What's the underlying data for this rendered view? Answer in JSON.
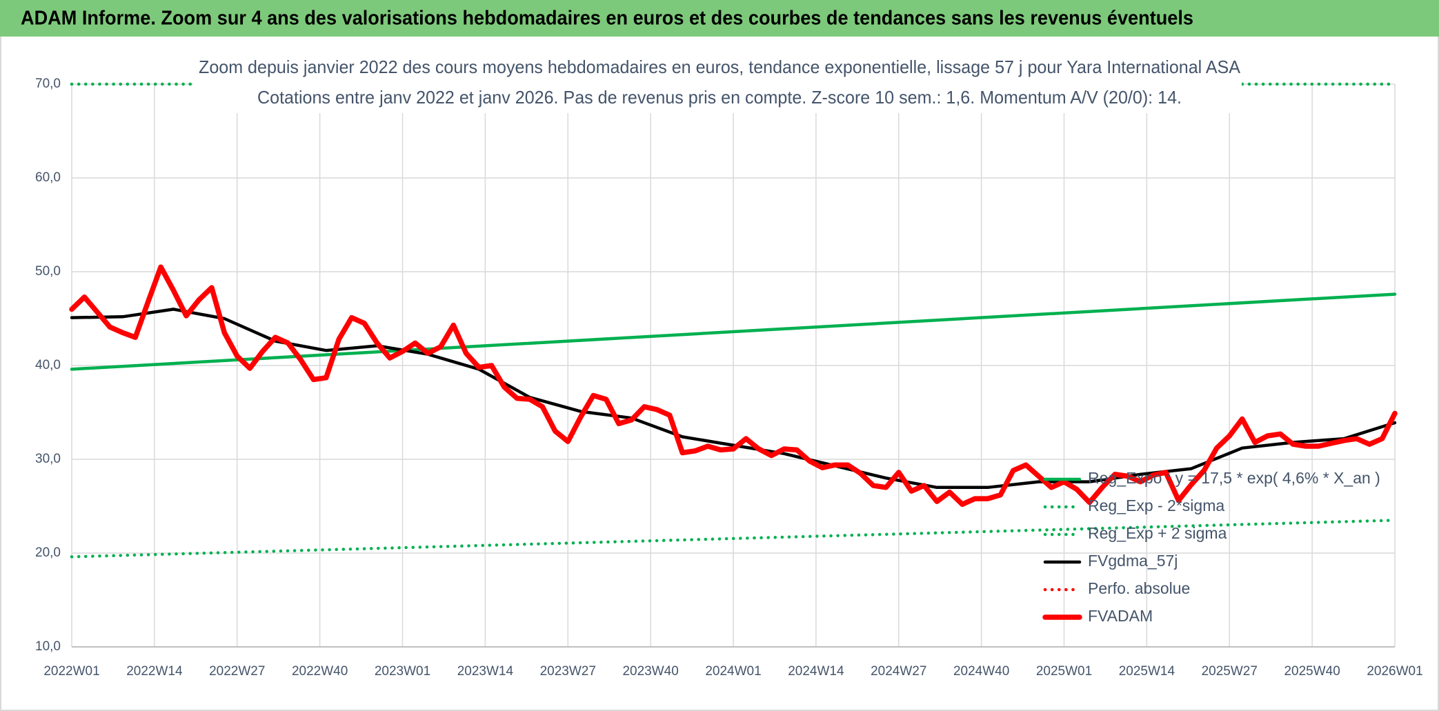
{
  "header": {
    "title": "ADAM Informe. Zoom sur 4 ans des valorisations hebdomadaires en euros et des courbes de tendances sans les revenus éventuels"
  },
  "chart_data": {
    "type": "line",
    "title": "Zoom depuis janvier 2022 des cours moyens hebdomadaires en euros, tendance exponentielle, lissage 57 j pour Yara International ASA",
    "subtitle": "Cotations entre janv 2022 et janv 2026. Pas de revenus pris en compte. Z-score 10 sem.: 1,6. Momentum A/V (20/0): 14.",
    "xlim": [
      0,
      208
    ],
    "xticks": [
      {
        "value": 0,
        "label": "2022W01"
      },
      {
        "value": 13,
        "label": "2022W14"
      },
      {
        "value": 26,
        "label": "2022W27"
      },
      {
        "value": 39,
        "label": "2022W40"
      },
      {
        "value": 52,
        "label": "2023W01"
      },
      {
        "value": 65,
        "label": "2023W14"
      },
      {
        "value": 78,
        "label": "2023W27"
      },
      {
        "value": 91,
        "label": "2023W40"
      },
      {
        "value": 104,
        "label": "2024W01"
      },
      {
        "value": 117,
        "label": "2024W14"
      },
      {
        "value": 130,
        "label": "2024W27"
      },
      {
        "value": 143,
        "label": "2024W40"
      },
      {
        "value": 156,
        "label": "2025W01"
      },
      {
        "value": 169,
        "label": "2025W14"
      },
      {
        "value": 182,
        "label": "2025W27"
      },
      {
        "value": 195,
        "label": "2025W40"
      },
      {
        "value": 208,
        "label": "2026W01"
      }
    ],
    "ylim": [
      10,
      70
    ],
    "yticks": [
      {
        "value": 10,
        "label": "10,0"
      },
      {
        "value": 20,
        "label": "20,0"
      },
      {
        "value": 30,
        "label": "30,0"
      },
      {
        "value": 40,
        "label": "40,0"
      },
      {
        "value": 50,
        "label": "50,0"
      },
      {
        "value": 60,
        "label": "60,0"
      },
      {
        "value": 70,
        "label": "70,0"
      }
    ],
    "grid": true,
    "legend": "lower right",
    "series": [
      {
        "name": "Reg_Expo : y = 17,5 * exp( 4,6% *  X_an )",
        "color": "#00b050",
        "style": "solid",
        "x": [
          0,
          208
        ],
        "values": [
          39.6,
          47.6
        ]
      },
      {
        "name": "Reg_Exp - 2*sigma",
        "color": "#00b050",
        "style": "dotted",
        "x": [
          0,
          208
        ],
        "values": [
          19.6,
          23.5
        ]
      },
      {
        "name": "Reg_Exp + 2 sigma",
        "color": "#00b050",
        "style": "dotted",
        "x": [
          0,
          208
        ],
        "values": [
          70,
          70
        ]
      },
      {
        "name": "FVgdma_57j",
        "color": "#000000",
        "style": "solid",
        "x": [
          0,
          8,
          16,
          24,
          32,
          40,
          48,
          56,
          64,
          72,
          80,
          88,
          96,
          104,
          112,
          120,
          128,
          136,
          144,
          152,
          160,
          168,
          176,
          184,
          192,
          200,
          208
        ],
        "values": [
          45.1,
          45.2,
          46.0,
          45.0,
          42.6,
          41.6,
          42.1,
          41.2,
          39.6,
          36.6,
          35.1,
          34.4,
          32.4,
          31.5,
          30.6,
          29.3,
          28.0,
          27.0,
          27.0,
          27.6,
          27.6,
          28.4,
          29.0,
          31.2,
          31.8,
          32.2,
          33.9
        ]
      },
      {
        "name": "Perfo. absolue",
        "color": "#ff0000",
        "style": "dotted",
        "x": [],
        "values": []
      },
      {
        "name": "FVADAM",
        "color": "#ff0000",
        "style": "bold",
        "x": [
          0,
          2,
          4,
          6,
          8,
          10,
          12,
          14,
          16,
          18,
          20,
          22,
          24,
          26,
          28,
          30,
          32,
          34,
          36,
          38,
          40,
          42,
          44,
          46,
          48,
          50,
          52,
          54,
          56,
          58,
          60,
          62,
          64,
          66,
          68,
          70,
          72,
          74,
          76,
          78,
          80,
          82,
          84,
          86,
          88,
          90,
          92,
          94,
          96,
          98,
          100,
          102,
          104,
          106,
          108,
          110,
          112,
          114,
          116,
          118,
          120,
          122,
          124,
          126,
          128,
          130,
          132,
          134,
          136,
          138,
          140,
          142,
          144,
          146,
          148,
          150,
          152,
          154,
          156,
          158,
          160,
          162,
          164,
          166,
          168,
          170,
          172,
          174,
          176,
          178,
          180,
          182,
          184,
          186,
          188,
          190,
          192,
          194,
          196,
          198,
          200,
          202,
          204,
          206,
          208
        ],
        "values": [
          46.0,
          47.3,
          45.7,
          44.1,
          43.5,
          43.0,
          46.8,
          50.5,
          48.0,
          45.3,
          47.0,
          48.3,
          43.5,
          41.0,
          39.7,
          41.5,
          43.0,
          42.4,
          40.6,
          38.5,
          38.7,
          42.8,
          45.1,
          44.5,
          42.4,
          40.8,
          41.5,
          42.4,
          41.3,
          42.0,
          44.3,
          41.3,
          39.8,
          40.0,
          37.7,
          36.5,
          36.4,
          35.6,
          33.0,
          31.9,
          34.5,
          36.8,
          36.4,
          33.8,
          34.2,
          35.6,
          35.3,
          34.7,
          30.7,
          30.9,
          31.4,
          31.0,
          31.1,
          32.2,
          31.1,
          30.4,
          31.1,
          31.0,
          29.8,
          29.1,
          29.4,
          29.4,
          28.5,
          27.2,
          27.0,
          28.6,
          26.6,
          27.2,
          25.5,
          26.5,
          25.2,
          25.8,
          25.8,
          26.2,
          28.8,
          29.4,
          28.2,
          27.0,
          27.6,
          26.8,
          25.4,
          27.0,
          28.4,
          28.2,
          27.6,
          28.3,
          28.6,
          25.6,
          27.3,
          28.8,
          31.2,
          32.5,
          34.3,
          31.8,
          32.5,
          32.7,
          31.6,
          31.4,
          31.4,
          31.7,
          32.0,
          32.2,
          31.6,
          32.2,
          34.9
        ]
      }
    ]
  }
}
